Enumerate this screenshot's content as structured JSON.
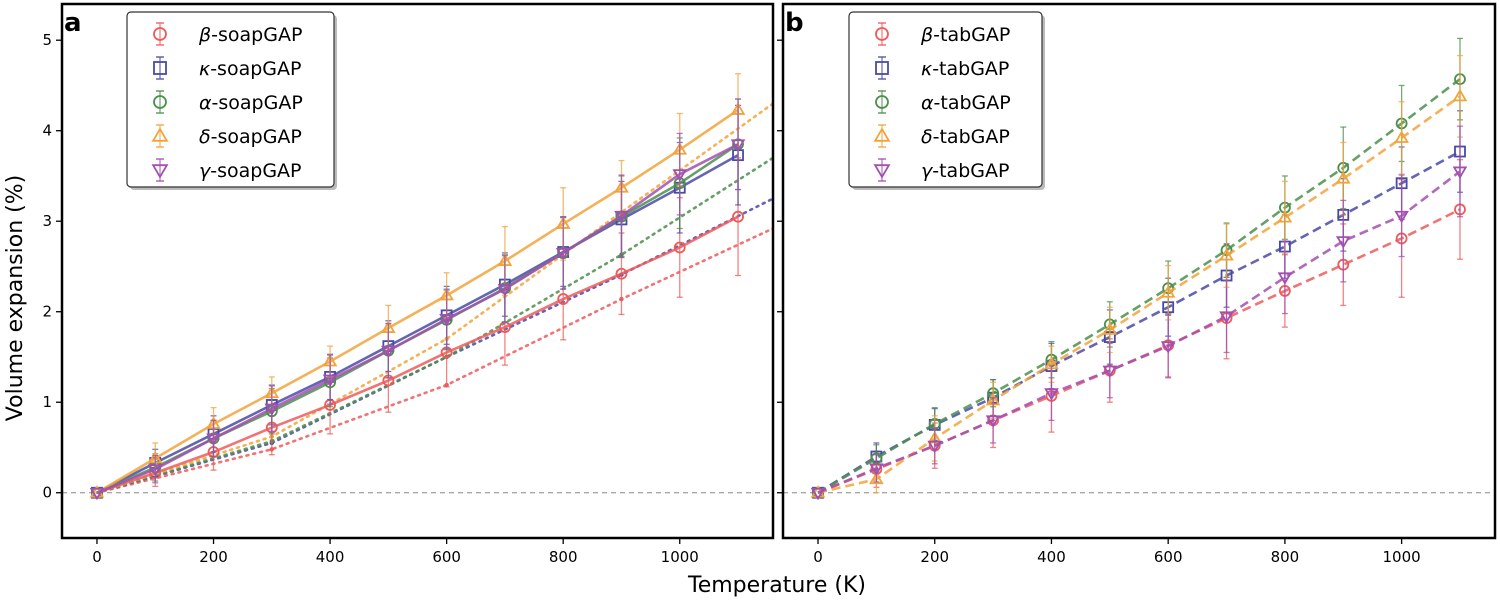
{
  "figure": {
    "ylabel": "Volume expansion (%)",
    "xlabel": "Temperature (K)"
  },
  "colors": {
    "beta": "#ee5a5a",
    "kappa": "#4a4aa6",
    "alpha": "#4c8f4c",
    "delta": "#f2a33a",
    "gamma": "#a34fb2"
  },
  "chart_data": [
    {
      "panel": "a",
      "type": "line",
      "xlim": [
        -60,
        1160
      ],
      "ylim": [
        -0.5,
        5.4
      ],
      "xticks": [
        0,
        200,
        400,
        600,
        800,
        1000
      ],
      "yticks": [
        0,
        1,
        2,
        3,
        4,
        5
      ],
      "x": [
        0,
        100,
        200,
        300,
        400,
        500,
        600,
        700,
        800,
        900,
        1000,
        1100
      ],
      "series": [
        {
          "key": "beta",
          "name": "β-soapGAP",
          "marker": "circle",
          "values": [
            0,
            0.22,
            0.45,
            0.72,
            0.97,
            1.24,
            1.55,
            1.83,
            2.14,
            2.42,
            2.71,
            3.05
          ],
          "err": [
            0,
            0.15,
            0.2,
            0.3,
            0.32,
            0.35,
            0.38,
            0.42,
            0.45,
            0.45,
            0.55,
            0.65
          ]
        },
        {
          "key": "kappa",
          "name": "κ-soapGAP",
          "marker": "square",
          "values": [
            0,
            0.33,
            0.65,
            0.97,
            1.28,
            1.62,
            1.96,
            2.3,
            2.66,
            3.02,
            3.37,
            3.73
          ],
          "err": [
            0,
            0.15,
            0.2,
            0.22,
            0.25,
            0.28,
            0.32,
            0.35,
            0.38,
            0.42,
            0.5,
            0.55
          ]
        },
        {
          "key": "alpha",
          "name": "α-soapGAP",
          "marker": "circle",
          "values": [
            0,
            0.28,
            0.6,
            0.9,
            1.22,
            1.57,
            1.91,
            2.26,
            2.65,
            3.05,
            3.42,
            3.85
          ],
          "err": [
            0,
            0.15,
            0.2,
            0.25,
            0.27,
            0.3,
            0.33,
            0.37,
            0.4,
            0.45,
            0.5,
            0.5
          ]
        },
        {
          "key": "delta",
          "name": "δ-soapGAP",
          "marker": "triangle-up",
          "values": [
            0,
            0.38,
            0.76,
            1.1,
            1.45,
            1.82,
            2.18,
            2.56,
            2.97,
            3.37,
            3.79,
            4.23
          ],
          "err": [
            0,
            0.17,
            0.18,
            0.18,
            0.17,
            0.25,
            0.25,
            0.38,
            0.4,
            0.3,
            0.4,
            0.4
          ]
        },
        {
          "key": "gamma",
          "name": "γ-soapGAP",
          "marker": "triangle-down",
          "values": [
            0,
            0.26,
            0.6,
            0.93,
            1.25,
            1.57,
            1.92,
            2.25,
            2.65,
            3.06,
            3.52,
            3.85
          ],
          "err": [
            0,
            0.15,
            0.2,
            0.25,
            0.27,
            0.3,
            0.33,
            0.37,
            0.4,
            0.45,
            0.45,
            0.5
          ]
        }
      ],
      "dotted_series": [
        {
          "key": "beta",
          "x": [
            0,
            300,
            600,
            900,
            1160
          ],
          "values": [
            0,
            0.48,
            1.19,
            2.14,
            2.92
          ]
        },
        {
          "key": "kappa",
          "x": [
            0,
            300,
            600,
            900,
            1160
          ],
          "values": [
            0,
            0.55,
            1.5,
            2.41,
            3.25
          ]
        },
        {
          "key": "alpha",
          "x": [
            0,
            300,
            600,
            900,
            1160
          ],
          "values": [
            0,
            0.57,
            1.5,
            2.63,
            3.7
          ]
        },
        {
          "key": "delta",
          "x": [
            0,
            300,
            600,
            900,
            1160
          ],
          "values": [
            0,
            0.62,
            1.7,
            3.1,
            4.3
          ]
        }
      ]
    },
    {
      "panel": "b",
      "type": "line",
      "xlim": [
        -60,
        1160
      ],
      "ylim": [
        -0.5,
        5.4
      ],
      "xticks": [
        0,
        200,
        400,
        600,
        800,
        1000
      ],
      "yticks": [
        0,
        1,
        2,
        3,
        4,
        5
      ],
      "x": [
        0,
        100,
        200,
        300,
        400,
        500,
        600,
        700,
        800,
        900,
        1000,
        1100
      ],
      "series": [
        {
          "key": "beta",
          "name": "β-tabGAP",
          "marker": "circle",
          "values": [
            0,
            0.26,
            0.52,
            0.8,
            1.07,
            1.35,
            1.63,
            1.93,
            2.23,
            2.52,
            2.81,
            3.13
          ],
          "err": [
            0,
            0.2,
            0.25,
            0.3,
            0.4,
            0.35,
            0.35,
            0.45,
            0.4,
            0.45,
            0.65,
            0.55
          ]
        },
        {
          "key": "kappa",
          "name": "κ-tabGAP",
          "marker": "square",
          "values": [
            0,
            0.4,
            0.75,
            1.05,
            1.4,
            1.72,
            2.05,
            2.4,
            2.72,
            3.07,
            3.42,
            3.77
          ],
          "err": [
            0,
            0.15,
            0.18,
            0.2,
            0.25,
            0.3,
            0.32,
            0.35,
            0.35,
            0.4,
            0.4,
            0.45
          ]
        },
        {
          "key": "alpha",
          "name": "α-tabGAP",
          "marker": "circle",
          "values": [
            0,
            0.38,
            0.76,
            1.1,
            1.47,
            1.86,
            2.26,
            2.68,
            3.15,
            3.59,
            4.08,
            4.57
          ],
          "err": [
            0,
            0.15,
            0.18,
            0.15,
            0.2,
            0.25,
            0.3,
            0.3,
            0.35,
            0.45,
            0.42,
            0.45
          ]
        },
        {
          "key": "delta",
          "name": "δ-tabGAP",
          "marker": "triangle-up",
          "values": [
            0,
            0.15,
            0.6,
            1.02,
            1.42,
            1.8,
            2.21,
            2.62,
            3.04,
            3.47,
            3.92,
            4.38
          ],
          "err": [
            0,
            0.15,
            0.25,
            0.2,
            0.2,
            0.25,
            0.3,
            0.35,
            0.4,
            0.4,
            0.4,
            0.45
          ]
        },
        {
          "key": "gamma",
          "name": "γ-tabGAP",
          "marker": "triangle-down",
          "values": [
            0,
            0.27,
            0.52,
            0.8,
            1.1,
            1.35,
            1.62,
            1.95,
            2.38,
            2.78,
            3.06,
            3.55
          ],
          "err": [
            0,
            0.15,
            0.2,
            0.25,
            0.3,
            0.3,
            0.35,
            0.4,
            0.4,
            0.45,
            0.45,
            0.5
          ]
        }
      ]
    }
  ]
}
